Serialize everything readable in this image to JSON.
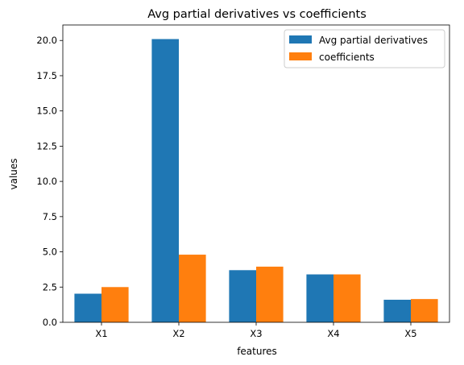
{
  "chart_data": {
    "type": "bar",
    "title": "Avg partial derivatives vs coefficients",
    "xlabel": "features",
    "ylabel": "values",
    "categories": [
      "X1",
      "X2",
      "X3",
      "X4",
      "X5"
    ],
    "series": [
      {
        "name": "Avg partial derivatives",
        "color": "#1f77b4",
        "values": [
          2.03,
          20.1,
          3.7,
          3.4,
          1.6
        ]
      },
      {
        "name": "coefficients",
        "color": "#ff7f0e",
        "values": [
          2.5,
          4.8,
          3.95,
          3.4,
          1.65
        ]
      }
    ],
    "ylim": [
      0,
      21.1
    ],
    "yticks": [
      "0.0",
      "2.5",
      "5.0",
      "7.5",
      "10.0",
      "12.5",
      "15.0",
      "17.5",
      "20.0"
    ],
    "grid": false,
    "legend_position": "top-right"
  }
}
